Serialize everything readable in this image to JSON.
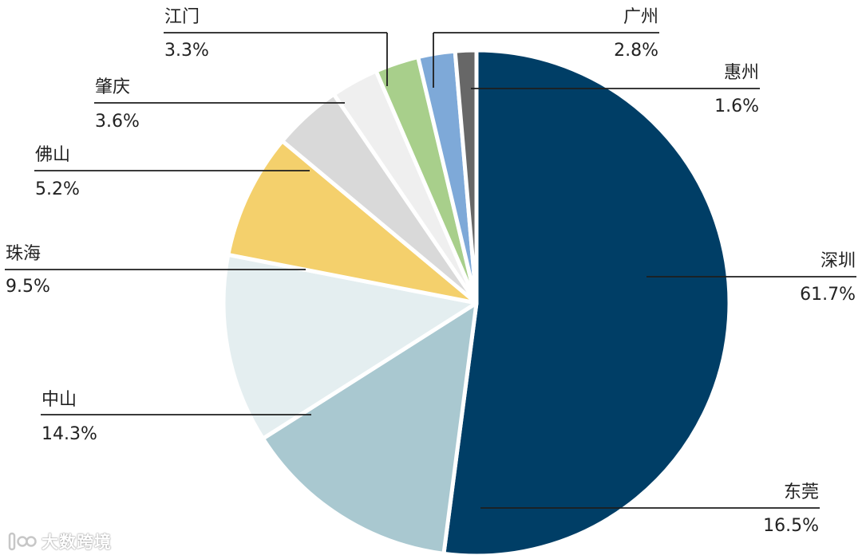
{
  "watermark": {
    "text": "大数跨境"
  },
  "chart_data": {
    "type": "pie",
    "title": "",
    "slices": [
      {
        "label": "深圳",
        "value": 61.7,
        "display": "61.7%",
        "color": "#003e66"
      },
      {
        "label": "东莞",
        "value": 16.5,
        "display": "16.5%",
        "color": "#a9c8d0"
      },
      {
        "label": "中山",
        "value": 14.3,
        "display": "14.3%",
        "color": "#e4eef0"
      },
      {
        "label": "珠海",
        "value": 9.5,
        "display": "9.5%",
        "color": "#f4d06c"
      },
      {
        "label": "佛山",
        "value": 5.2,
        "display": "5.2%",
        "color": "#d9d9d9"
      },
      {
        "label": "肇庆",
        "value": 3.6,
        "display": "3.6%",
        "color": "#efefef"
      },
      {
        "label": "江门",
        "value": 3.3,
        "display": "3.3%",
        "color": "#a8cf8b"
      },
      {
        "label": "广州",
        "value": 2.8,
        "display": "2.8%",
        "color": "#7ea9d8"
      },
      {
        "label": "惠州",
        "value": 1.6,
        "display": "1.6%",
        "color": "#676767"
      }
    ],
    "start": "12 o'clock",
    "direction": "clockwise",
    "legend": "none",
    "labels": "outside with leader lines"
  }
}
